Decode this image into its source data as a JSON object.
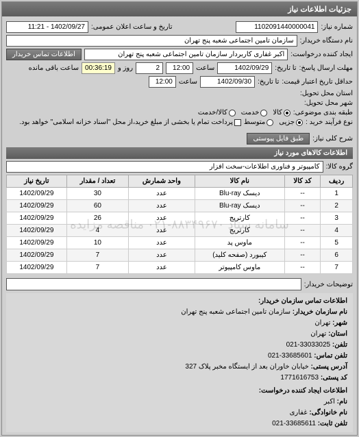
{
  "header": {
    "title": "جزئیات اطلاعات نیاز"
  },
  "request": {
    "number_label": "شماره نیاز:",
    "number": "1102091440000041",
    "announce_label": "تاریخ و ساعت اعلان عمومی:",
    "announce": "1402/09/27 - 11:21",
    "buyer_org_label": "نام دستگاه خریدار:",
    "buyer_org": "سازمان تامین اجتماعی شعبه پنج تهران",
    "creator_label": "ایجاد کننده درخواست:",
    "creator": "اکبر غفاری کاربردار  سازمان تامین اجتماعی شعبه پنج تهران",
    "contact_btn": "اطلاعات تماس خریدار",
    "deadline_label": "مهلت ارسال پاسخ:",
    "deadline_to": "تا تاریخ:",
    "deadline_date": "1402/09/29",
    "time_label": "ساعت",
    "deadline_time": "12:00",
    "days_and": "روز و",
    "days_num": "2",
    "remain": "ساعت باقی مانده",
    "remain_time": "00:36:19",
    "validity_label": "حداقل تاریخ اعتبار قیمت:",
    "validity_to": "تا تاریخ:",
    "validity_date": "1402/09/30",
    "validity_time": "12:00",
    "province_label": "استان محل تحویل:",
    "city_label": "شهر محل تحویل:",
    "subject_class_label": "طبقه بندی موضوعی:",
    "subject_kala": "کالا",
    "subject_service": "خدمت",
    "subject_both": "کالا/خدمت",
    "buy_type_label": "نوع فرآیند خرید :",
    "buy_small": "جزیی",
    "buy_med": "متوسط",
    "buy_note": "پرداخت تمام یا بخشی از مبلغ خرید،از محل \"اسناد خزانه اسلامی\" خواهد بود.",
    "desc_label": "شرح کلی نیاز:",
    "desc_btn": "طبق فایل پیوستی"
  },
  "goods_section": {
    "title": "اطلاعات کالاهای مورد نیاز",
    "group_label": "گروه کالا:",
    "group_value": "کامپیوتر و فناوری اطلاعات-سخت افزار",
    "columns": {
      "row": "ردیف",
      "code": "کد کالا",
      "name": "نام کالا",
      "unit": "واحد شمارش",
      "qty": "تعداد / مقدار",
      "date": "تاریخ نیاز"
    },
    "rows": [
      {
        "n": "1",
        "code": "--",
        "name": "دیسک Blu-ray",
        "unit": "عدد",
        "qty": "30",
        "date": "1402/09/29"
      },
      {
        "n": "2",
        "code": "--",
        "name": "دیسک Blu-ray",
        "unit": "عدد",
        "qty": "60",
        "date": "1402/09/29"
      },
      {
        "n": "3",
        "code": "--",
        "name": "کارتریج",
        "unit": "عدد",
        "qty": "26",
        "date": "1402/09/29"
      },
      {
        "n": "4",
        "code": "--",
        "name": "کارتریج",
        "unit": "عدد",
        "qty": "4",
        "date": "1402/09/29"
      },
      {
        "n": "5",
        "code": "--",
        "name": "ماوس پد",
        "unit": "عدد",
        "qty": "10",
        "date": "1402/09/29"
      },
      {
        "n": "6",
        "code": "--",
        "name": "کیبورد (صفحه کلید)",
        "unit": "عدد",
        "qty": "7",
        "date": "1402/09/29"
      },
      {
        "n": "7",
        "code": "--",
        "name": "ماوس کامپیوتر",
        "unit": "عدد",
        "qty": "7",
        "date": "1402/09/29"
      }
    ],
    "watermark": "سامانه ستاد ۸۸۳۴۹۶۷۰-۰۲۱ مناقصه مزایده",
    "buyer_note_label": "توضیحات خریدار:"
  },
  "contact": {
    "title": "اطلاعات تماس سازمان خریدار:",
    "org_label": "نام سازمان خریدار:",
    "org": "سازمان تامین اجتماعی شعبه پنج تهران",
    "city_label": "شهر:",
    "city": "تهران",
    "province_label": "استان:",
    "province": "تهران",
    "phone_label": "تلفن:",
    "phone": "33033025-021",
    "fax_label": "تلفن تماس:",
    "fax": "33685601-021",
    "address_label": "آدرس پستی:",
    "address": "خیابان خاوران بعد از ایستگاه مخبر پلاک 327",
    "postal_label": "کد پستی:",
    "postal": "1771616753",
    "creator_title": "اطلاعات ایجاد کننده درخواست:",
    "name_label": "نام:",
    "name": "اکبر",
    "family_label": "نام خانوادگی:",
    "family": "غفاری",
    "tel_label": "تلفن ثابت:",
    "tel": "33685611-021"
  }
}
